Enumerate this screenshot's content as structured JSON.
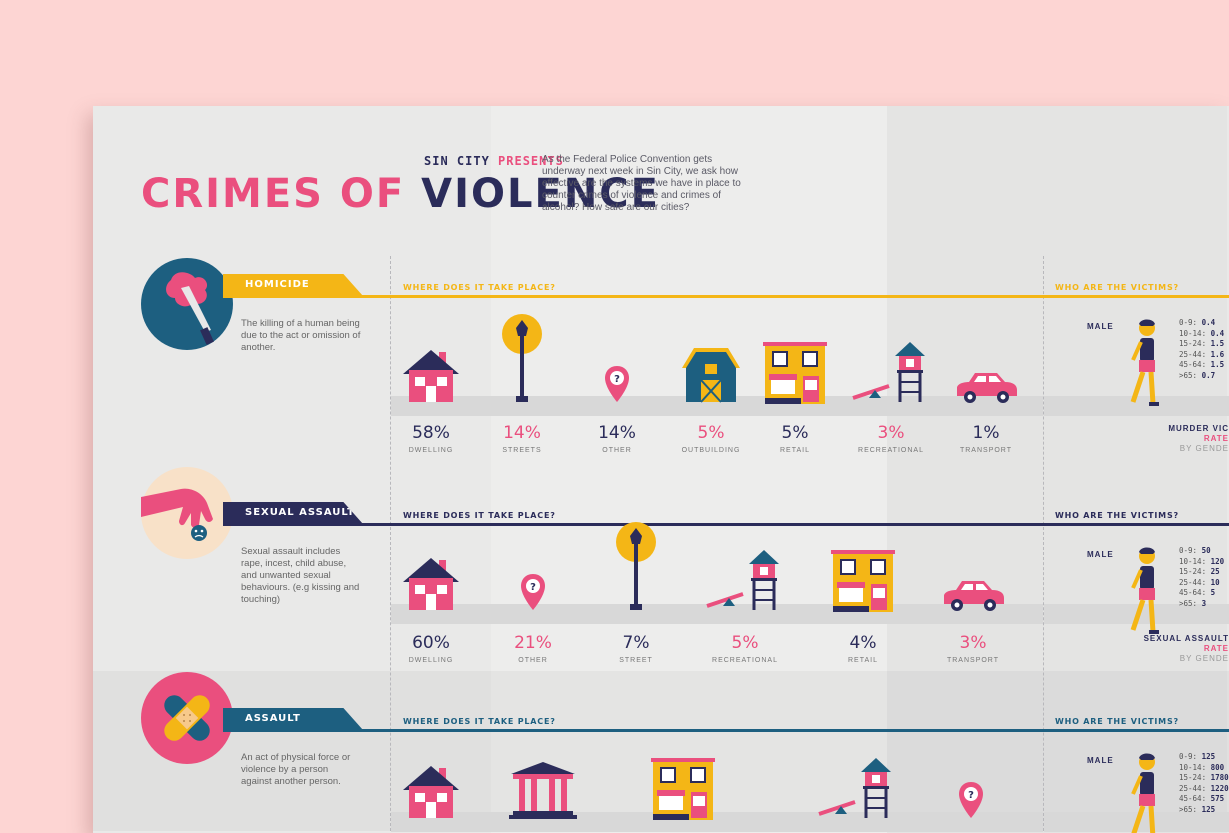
{
  "header": {
    "brand": "SIN CITY",
    "presents": "PRESENTS",
    "title_a": "CRIMES OF",
    "title_b": "VIOLENCE",
    "intro": "As the Federal Police Convention gets underway next week in Sin City, we ask how effective are the systems we have in place to counter crimes of violence and crimes of alcohol? How safe are our cities?"
  },
  "colors": {
    "pink": "#ea4f7e",
    "navy": "#2b2c5a",
    "teal": "#1d5f80",
    "yellow": "#f4b616",
    "background": "#fdd5d3"
  },
  "sections": [
    {
      "name": "HOMICIDE",
      "color": "#f4b616",
      "desc": "The killing of a human being due to the act or omission of another.",
      "where_label": "WHERE DOES IT TAKE PLACE?",
      "who_label": "WHO ARE THE VICTIMS?",
      "icon": "knife-icon",
      "places": [
        {
          "pct": "58%",
          "label": "DWELLING",
          "icon": "house-icon"
        },
        {
          "pct": "14%",
          "label": "STREETS",
          "icon": "streetlamp-icon"
        },
        {
          "pct": "14%",
          "label": "OTHER",
          "icon": "location-pin-icon"
        },
        {
          "pct": "5%",
          "label": "OUTBUILDING",
          "icon": "barn-icon"
        },
        {
          "pct": "5%",
          "label": "RETAIL",
          "icon": "shop-icon"
        },
        {
          "pct": "3%",
          "label": "RECREATIONAL",
          "icon": "playground-icon"
        },
        {
          "pct": "1%",
          "label": "TRANSPORT",
          "icon": "car-icon"
        }
      ],
      "gender": "MALE",
      "ages": [
        {
          "a": "0-9:",
          "v": "0.4"
        },
        {
          "a": "10-14:",
          "v": "0.4"
        },
        {
          "a": "15-24:",
          "v": "1.5"
        },
        {
          "a": "25-44:",
          "v": "1.6"
        },
        {
          "a": "45-64:",
          "v": "1.5"
        },
        {
          "a": ">65:",
          "v": "0.7"
        }
      ],
      "rate_l1": "MURDER VIC",
      "rate_l2": "RATE",
      "rate_l3": "BY GENDE"
    },
    {
      "name": "SEXUAL ASSAULT",
      "color": "#2b2c5a",
      "desc": "Sexual assault includes rape, incest, child abuse, and unwanted sexual behaviours. (e.g kissing and touching)",
      "where_label": "WHERE DOES IT TAKE PLACE?",
      "who_label": "WHO ARE THE VICTIMS?",
      "icon": "grabbing-hand-icon",
      "places": [
        {
          "pct": "60%",
          "label": "DWELLING",
          "icon": "house-icon"
        },
        {
          "pct": "21%",
          "label": "OTHER",
          "icon": "location-pin-icon"
        },
        {
          "pct": "7%",
          "label": "STREET",
          "icon": "streetlamp-icon"
        },
        {
          "pct": "5%",
          "label": "RECREATIONAL",
          "icon": "playground-icon"
        },
        {
          "pct": "4%",
          "label": "RETAIL",
          "icon": "shop-icon"
        },
        {
          "pct": "3%",
          "label": "TRANSPORT",
          "icon": "car-icon"
        }
      ],
      "gender": "MALE",
      "ages": [
        {
          "a": "0-9:",
          "v": "50"
        },
        {
          "a": "10-14:",
          "v": "120"
        },
        {
          "a": "15-24:",
          "v": "25"
        },
        {
          "a": "25-44:",
          "v": "10"
        },
        {
          "a": "45-64:",
          "v": "5"
        },
        {
          "a": ">65:",
          "v": "3"
        }
      ],
      "rate_l1": "SEXUAL ASSAULT",
      "rate_l2": "RATE",
      "rate_l3": "BY GENDE"
    },
    {
      "name": "ASSAULT",
      "color": "#1d5f80",
      "desc": "An act of physical force or violence by a person against another person.",
      "where_label": "WHERE DOES IT TAKE PLACE?",
      "who_label": "WHO ARE THE VICTIMS?",
      "icon": "bandage-icon",
      "places": [
        {
          "icon": "house-icon"
        },
        {
          "icon": "courthouse-icon"
        },
        {
          "icon": "shop-icon"
        },
        {
          "icon": "playground-icon"
        },
        {
          "icon": "location-pin-icon"
        }
      ],
      "gender": "MALE",
      "ages": [
        {
          "a": "0-9:",
          "v": "125"
        },
        {
          "a": "10-14:",
          "v": "800"
        },
        {
          "a": "15-24:",
          "v": "1780"
        },
        {
          "a": "25-44:",
          "v": "1220"
        },
        {
          "a": "45-64:",
          "v": "575"
        },
        {
          "a": ">65:",
          "v": "125"
        }
      ]
    }
  ]
}
